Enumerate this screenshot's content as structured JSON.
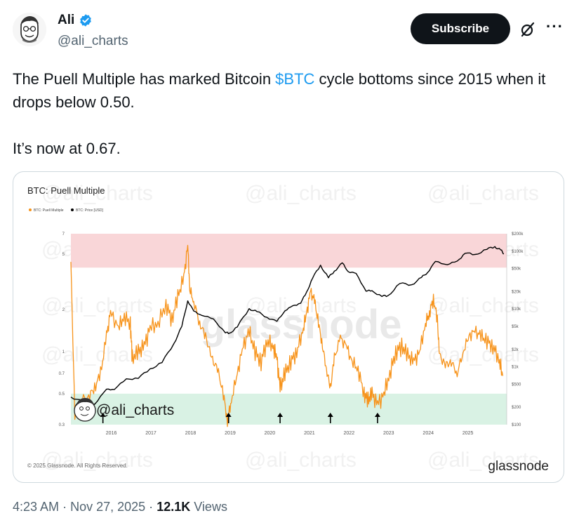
{
  "author": {
    "name": "Ali",
    "handle": "@ali_charts",
    "avatar_icon": "cartoon-face-avatar",
    "verified_color": "#1d9bf0"
  },
  "header": {
    "subscribe_label": "Subscribe",
    "grok_icon": "slashed-circle-icon",
    "more_icon": "ellipsis-icon"
  },
  "tweet": {
    "text_before": "The Puell Multiple has marked Bitcoin ",
    "cashtag": "$BTC",
    "text_after": " cycle bottoms since 2015 when it drops below 0.50.",
    "text_p2": "It’s now at 0.67."
  },
  "meta": {
    "time": "4:23 AM",
    "separator": "·",
    "date": "Nov 27, 2025",
    "separator2": "·",
    "views_count": "12.1K",
    "views_label": "Views"
  },
  "colors": {
    "puell": "#f7931a",
    "price": "#000000",
    "red_band": "#f9d6d8",
    "green_band": "#d9f2e4"
  },
  "chart_data": {
    "type": "line",
    "title": "BTC: Puell Multiple",
    "legend": [
      "BTC: Puell Multiple",
      "BTC: Price [USD]"
    ],
    "legend_placement": "top-left",
    "footer": "© 2025 Glassnode. All Rights Reserved.",
    "brand": "glassnode",
    "watermark": "@ali_charts",
    "center_watermark": "glassnode",
    "x_ticks": [
      "2016",
      "2017",
      "2018",
      "2019",
      "2020",
      "2021",
      "2022",
      "2023",
      "2024",
      "2025"
    ],
    "x_range": [
      2015.0,
      2026.0
    ],
    "y_left": {
      "scale": "log",
      "ticks": [
        "0.3",
        "0.5",
        "0.7",
        "1",
        "2",
        "5",
        "7"
      ],
      "range": [
        0.3,
        7
      ]
    },
    "y_right": {
      "scale": "log",
      "ticks": [
        "$100",
        "$200",
        "$500",
        "$1k",
        "$2k",
        "$5k",
        "$10k",
        "$20k",
        "$50k",
        "$100k",
        "$200k"
      ],
      "range": [
        100,
        200000
      ]
    },
    "bands": [
      {
        "name": "top zone",
        "from": 4,
        "to": 7
      },
      {
        "name": "bottom zone",
        "from": 0.3,
        "to": 0.5
      }
    ],
    "bottom_arrows": [
      2015.1,
      2018.98,
      2020.28,
      2021.55,
      2022.74
    ],
    "series": [
      {
        "name": "BTC: Puell Multiple",
        "axis": "left",
        "x": [
          2015.0,
          2015.1,
          2015.25,
          2015.45,
          2015.6,
          2015.75,
          2015.9,
          2016.0,
          2016.2,
          2016.35,
          2016.5,
          2016.55,
          2016.7,
          2016.85,
          2017.0,
          2017.2,
          2017.4,
          2017.55,
          2017.7,
          2017.85,
          2017.95,
          2018.0,
          2018.1,
          2018.25,
          2018.4,
          2018.55,
          2018.7,
          2018.85,
          2018.95,
          2019.05,
          2019.2,
          2019.35,
          2019.5,
          2019.65,
          2019.8,
          2019.95,
          2020.1,
          2020.2,
          2020.28,
          2020.4,
          2020.55,
          2020.7,
          2020.85,
          2020.95,
          2021.05,
          2021.15,
          2021.25,
          2021.35,
          2021.45,
          2021.55,
          2021.65,
          2021.8,
          2021.95,
          2022.1,
          2022.25,
          2022.4,
          2022.5,
          2022.6,
          2022.74,
          2022.9,
          2023.05,
          2023.2,
          2023.35,
          2023.5,
          2023.65,
          2023.8,
          2023.95,
          2024.05,
          2024.15,
          2024.25,
          2024.3,
          2024.45,
          2024.6,
          2024.75,
          2024.9,
          2025.05,
          2025.2,
          2025.35,
          2025.5,
          2025.65,
          2025.8,
          2025.9
        ],
        "values": [
          4.4,
          0.34,
          0.45,
          0.48,
          0.55,
          0.7,
          1.3,
          1.9,
          1.5,
          1.8,
          1.6,
          0.9,
          1.0,
          1.1,
          1.5,
          1.6,
          2.2,
          1.7,
          2.5,
          3.4,
          5.8,
          2.8,
          2.3,
          1.6,
          1.3,
          0.9,
          0.75,
          0.5,
          0.32,
          0.45,
          0.7,
          1.1,
          1.4,
          1.0,
          0.85,
          1.2,
          1.1,
          0.9,
          0.55,
          0.7,
          0.85,
          1.0,
          1.4,
          1.9,
          2.7,
          2.3,
          1.6,
          1.1,
          0.75,
          0.55,
          0.9,
          1.25,
          1.1,
          0.85,
          0.75,
          0.5,
          0.45,
          0.5,
          0.42,
          0.5,
          0.7,
          1.0,
          1.1,
          0.95,
          0.85,
          1.0,
          1.6,
          1.9,
          2.4,
          1.7,
          0.95,
          0.8,
          0.85,
          0.7,
          1.0,
          1.3,
          1.4,
          1.3,
          1.2,
          1.1,
          0.9,
          0.67
        ]
      },
      {
        "name": "BTC: Price [USD]",
        "axis": "right",
        "x": [
          2015.0,
          2015.3,
          2015.6,
          2015.9,
          2016.1,
          2016.4,
          2016.7,
          2017.0,
          2017.3,
          2017.6,
          2017.8,
          2017.95,
          2018.1,
          2018.3,
          2018.6,
          2018.9,
          2019.0,
          2019.2,
          2019.5,
          2019.7,
          2019.95,
          2020.2,
          2020.4,
          2020.6,
          2020.8,
          2020.95,
          2021.1,
          2021.3,
          2021.5,
          2021.65,
          2021.85,
          2022.0,
          2022.2,
          2022.45,
          2022.6,
          2022.85,
          2023.0,
          2023.3,
          2023.6,
          2023.85,
          2024.0,
          2024.2,
          2024.5,
          2024.75,
          2024.95,
          2025.2,
          2025.5,
          2025.7,
          2025.85,
          2025.93
        ],
        "values": [
          300,
          250,
          230,
          400,
          420,
          600,
          650,
          900,
          1200,
          2500,
          5000,
          14000,
          9000,
          8000,
          6500,
          4000,
          3700,
          5000,
          10000,
          9000,
          7200,
          6000,
          9500,
          11000,
          13000,
          19000,
          35000,
          56000,
          35000,
          45000,
          62000,
          45000,
          40000,
          21000,
          20000,
          17000,
          16500,
          28000,
          26000,
          35000,
          43000,
          65000,
          60000,
          65000,
          95000,
          85000,
          110000,
          118000,
          105000,
          90000
        ]
      }
    ]
  }
}
